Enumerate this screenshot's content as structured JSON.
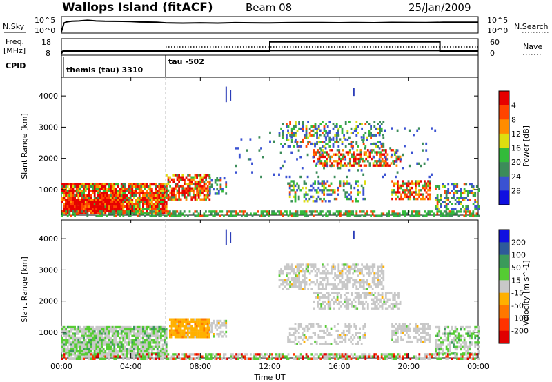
{
  "header": {
    "station": "Wallops Island (fitACF)",
    "beam": "Beam 08",
    "date": "25/Jan/2009"
  },
  "noise_panel": {
    "left_label": "N.Sky",
    "left_ticks": [
      "10^5",
      "10^0"
    ],
    "right_ticks": [
      "10^5",
      "10^0"
    ],
    "right_label": "N.Search"
  },
  "freq_panel": {
    "left_label_1": "Freq.",
    "left_label_2": "[MHz]",
    "left_ticks": [
      "18",
      "8"
    ],
    "right_ticks": [
      "60",
      "0"
    ],
    "right_label": "Nave"
  },
  "cpid_panel": {
    "label": "CPID",
    "segments": [
      {
        "start_hour": 0,
        "text": "themis (tau) 3310"
      },
      {
        "start_hour": 6,
        "text": "tau -502"
      }
    ]
  },
  "chart_data": [
    {
      "type": "line",
      "title": "N.Sky / N.Search",
      "y_scale": "log",
      "ylim": [
        1,
        100000
      ],
      "x_hours": [
        0,
        0.15,
        0.3,
        0.6,
        1,
        1.5,
        2,
        2.5,
        3,
        3.5,
        4,
        4.5,
        5,
        5.5,
        6,
        7,
        8,
        9,
        10,
        11,
        12,
        13,
        14,
        15,
        16,
        17,
        18,
        19,
        20,
        21,
        22,
        23,
        24
      ],
      "series": [
        {
          "name": "N.Sky",
          "style": "solid",
          "values": [
            1,
            1500,
            3500,
            6000,
            8000,
            12000,
            9000,
            6000,
            5500,
            5000,
            4500,
            4000,
            3500,
            3000,
            2000,
            1500,
            1700,
            1500,
            2200,
            1700,
            1500,
            1800,
            2000,
            1900,
            2100,
            2000,
            2100,
            2200,
            2000,
            2200,
            2300,
            2500,
            2600
          ]
        },
        {
          "name": "N.Search",
          "style": "dotted",
          "values": []
        }
      ]
    },
    {
      "type": "line",
      "title": "Freq. / Nave",
      "left_ylim": [
        8,
        18
      ],
      "right_ylim": [
        0,
        60
      ],
      "series": [
        {
          "name": "Freq.",
          "axis": "left",
          "style": "solid",
          "x_hours": [
            0,
            0.1,
            24
          ],
          "values": [
            8,
            10.3,
            10.3
          ]
        },
        {
          "name": "Nave",
          "axis": "right",
          "style": "dotted",
          "x_hours": [
            6,
            12,
            21.8,
            24
          ],
          "values": [
            30,
            30,
            30,
            30
          ]
        },
        {
          "name": "Nave-step",
          "axis": "right",
          "style": "solid",
          "x_hours": [
            0,
            12,
            12,
            21.8,
            21.8,
            24
          ],
          "values": [
            9,
            9,
            52,
            52,
            9,
            9
          ]
        }
      ]
    },
    {
      "type": "heatmap",
      "title": "Power",
      "xlabel": "",
      "ylabel": "Slant Range [km]",
      "xlim": [
        0,
        24
      ],
      "ylim": [
        180,
        4600
      ],
      "yticks": [
        1000,
        2000,
        3000,
        4000
      ],
      "colorbar": {
        "label": "Power [dB]",
        "ticks": [
          "4",
          "8",
          "12",
          "16",
          "20",
          "24",
          "28"
        ],
        "bins": [
          {
            "lo": 0,
            "hi": 4,
            "color": "#1010e0"
          },
          {
            "lo": 4,
            "hi": 8,
            "color": "#3a52d2"
          },
          {
            "lo": 8,
            "hi": 12,
            "color": "#3c8c5a"
          },
          {
            "lo": 12,
            "hi": 16,
            "color": "#33bb3a"
          },
          {
            "lo": 16,
            "hi": 20,
            "color": "#dede10"
          },
          {
            "lo": 20,
            "hi": 24,
            "color": "#ff8c00"
          },
          {
            "lo": 24,
            "hi": 28,
            "color": "#ff4400"
          },
          {
            "lo": 28,
            "hi": 32,
            "color": "#e60000"
          }
        ]
      },
      "regions": [
        {
          "t0": 0,
          "t1": 6.0,
          "r0": 220,
          "r1": 1200,
          "level": "high",
          "density": 0.9
        },
        {
          "t0": 0.2,
          "t1": 3.5,
          "r0": 300,
          "r1": 700,
          "level": "max",
          "density": 0.95
        },
        {
          "t0": 6.0,
          "t1": 8.5,
          "r0": 700,
          "r1": 1500,
          "level": "high",
          "density": 0.75
        },
        {
          "t0": 8.5,
          "t1": 9.5,
          "r0": 900,
          "r1": 1400,
          "level": "mid",
          "density": 0.5
        },
        {
          "t0": 12.5,
          "t1": 18.5,
          "r0": 2400,
          "r1": 3200,
          "level": "mid",
          "density": 0.35
        },
        {
          "t0": 14.5,
          "t1": 19.5,
          "r0": 1800,
          "r1": 2300,
          "level": "high",
          "density": 0.55
        },
        {
          "t0": 19.0,
          "t1": 21.2,
          "r0": 700,
          "r1": 1300,
          "level": "high",
          "density": 0.6
        },
        {
          "t0": 13.0,
          "t1": 17.5,
          "r0": 650,
          "r1": 1300,
          "level": "mid",
          "density": 0.3
        },
        {
          "t0": 21.5,
          "t1": 24,
          "r0": 400,
          "r1": 1200,
          "level": "mid",
          "density": 0.45
        },
        {
          "t0": 10.0,
          "t1": 21.5,
          "r0": 1400,
          "r1": 3000,
          "level": "low",
          "density": 0.05
        },
        {
          "t0": 0,
          "t1": 24,
          "r0": 180,
          "r1": 330,
          "level": "ground",
          "density": 0.55
        }
      ]
    },
    {
      "type": "heatmap",
      "title": "Velocity",
      "xlabel": "Time UT",
      "ylabel": "Slant Range [km]",
      "xlim": [
        0,
        24
      ],
      "ylim": [
        180,
        4600
      ],
      "yticks": [
        1000,
        2000,
        3000,
        4000
      ],
      "xticks": [
        "00:00",
        "04:00",
        "08:00",
        "12:00",
        "16:00",
        "20:00",
        "00:00"
      ],
      "colorbar": {
        "label": "Velocity [m s^-1]",
        "ticks": [
          "200",
          "100",
          "50",
          "15",
          "-15",
          "-50",
          "-100",
          "-200"
        ],
        "bins": [
          {
            "lo": 200,
            "hi": 400,
            "color": "#1010e0"
          },
          {
            "lo": 100,
            "hi": 200,
            "color": "#2e5a9a"
          },
          {
            "lo": 50,
            "hi": 100,
            "color": "#3a9a5a"
          },
          {
            "lo": 15,
            "hi": 50,
            "color": "#55cc33"
          },
          {
            "lo": -15,
            "hi": 15,
            "color": "#c8c8c8"
          },
          {
            "lo": -50,
            "hi": -15,
            "color": "#ffb000"
          },
          {
            "lo": -100,
            "hi": -50,
            "color": "#ff7700"
          },
          {
            "lo": -200,
            "hi": -100,
            "color": "#ff3300"
          },
          {
            "lo": -400,
            "hi": -200,
            "color": "#e00000"
          }
        ]
      },
      "regions": [
        {
          "t0": 0,
          "t1": 6.0,
          "r0": 220,
          "r1": 1200,
          "vel": "green-grey",
          "density": 0.9
        },
        {
          "t0": 6.2,
          "t1": 8.5,
          "r0": 850,
          "r1": 1450,
          "vel": "orange",
          "density": 0.9
        },
        {
          "t0": 8.5,
          "t1": 9.5,
          "r0": 900,
          "r1": 1400,
          "vel": "grey",
          "density": 0.6
        },
        {
          "t0": 12.5,
          "t1": 18.5,
          "r0": 2400,
          "r1": 3200,
          "vel": "grey",
          "density": 0.55
        },
        {
          "t0": 14.5,
          "t1": 19.5,
          "r0": 1800,
          "r1": 2300,
          "vel": "grey",
          "density": 0.6
        },
        {
          "t0": 19.0,
          "t1": 21.2,
          "r0": 700,
          "r1": 1300,
          "vel": "grey",
          "density": 0.6
        },
        {
          "t0": 13.0,
          "t1": 17.5,
          "r0": 650,
          "r1": 1300,
          "vel": "grey",
          "density": 0.35
        },
        {
          "t0": 21.5,
          "t1": 24,
          "r0": 300,
          "r1": 1200,
          "vel": "green-grey",
          "density": 0.5
        },
        {
          "t0": 0,
          "t1": 24,
          "r0": 180,
          "r1": 330,
          "vel": "ground",
          "density": 0.6
        }
      ]
    }
  ]
}
